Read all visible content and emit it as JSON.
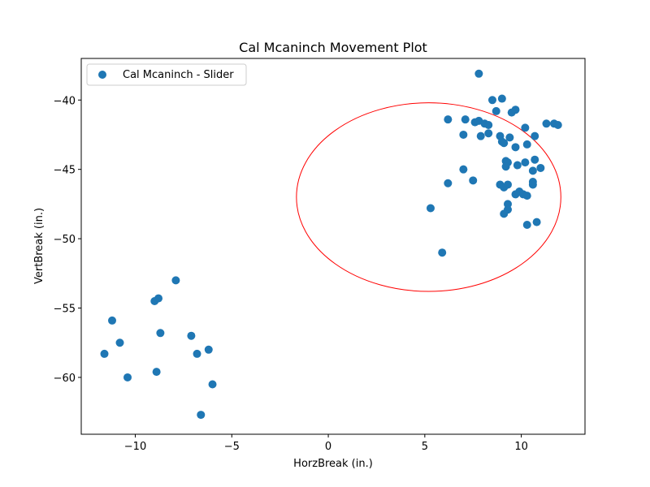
{
  "chart_data": {
    "type": "scatter",
    "title": "Cal Mcaninch Movement Plot",
    "xlabel": "HorzBreak (in.)",
    "ylabel": "VertBreak (in.)",
    "xlim": [
      -12.8,
      13.3
    ],
    "ylim": [
      -64.1,
      -37.0
    ],
    "xticks": [
      -10,
      -5,
      0,
      5,
      10
    ],
    "yticks": [
      -40,
      -45,
      -50,
      -55,
      -60
    ],
    "grid": false,
    "legend_position": "top-left",
    "colors": {
      "series": "#1f77b4",
      "ellipse": "#ff0000"
    },
    "series": [
      {
        "name": "Cal Mcaninch - Slider",
        "points": [
          [
            7.8,
            -38.1
          ],
          [
            8.5,
            -40.0
          ],
          [
            9.0,
            -39.9
          ],
          [
            9.7,
            -40.7
          ],
          [
            9.5,
            -40.9
          ],
          [
            8.7,
            -40.8
          ],
          [
            6.2,
            -41.4
          ],
          [
            7.1,
            -41.4
          ],
          [
            7.6,
            -41.6
          ],
          [
            7.8,
            -41.5
          ],
          [
            8.1,
            -41.7
          ],
          [
            8.3,
            -41.8
          ],
          [
            10.2,
            -42.0
          ],
          [
            11.3,
            -41.7
          ],
          [
            11.7,
            -41.7
          ],
          [
            11.9,
            -41.8
          ],
          [
            7.0,
            -42.5
          ],
          [
            7.9,
            -42.6
          ],
          [
            8.3,
            -42.4
          ],
          [
            8.9,
            -42.6
          ],
          [
            9.0,
            -43.0
          ],
          [
            9.1,
            -43.1
          ],
          [
            9.4,
            -42.7
          ],
          [
            10.7,
            -42.6
          ],
          [
            9.7,
            -43.4
          ],
          [
            10.3,
            -43.2
          ],
          [
            9.2,
            -44.4
          ],
          [
            9.3,
            -44.5
          ],
          [
            9.8,
            -44.7
          ],
          [
            10.2,
            -44.5
          ],
          [
            10.7,
            -44.3
          ],
          [
            9.2,
            -44.8
          ],
          [
            11.0,
            -44.9
          ],
          [
            10.6,
            -45.1
          ],
          [
            7.0,
            -45.0
          ],
          [
            7.5,
            -45.8
          ],
          [
            6.2,
            -46.0
          ],
          [
            10.6,
            -45.9
          ],
          [
            10.6,
            -46.1
          ],
          [
            8.9,
            -46.1
          ],
          [
            9.1,
            -46.3
          ],
          [
            9.3,
            -46.1
          ],
          [
            9.9,
            -46.6
          ],
          [
            9.7,
            -46.8
          ],
          [
            10.1,
            -46.8
          ],
          [
            10.3,
            -46.9
          ],
          [
            9.3,
            -47.5
          ],
          [
            9.3,
            -47.9
          ],
          [
            9.1,
            -48.2
          ],
          [
            5.3,
            -47.8
          ],
          [
            10.8,
            -48.8
          ],
          [
            10.3,
            -49.0
          ],
          [
            5.9,
            -51.0
          ],
          [
            -7.9,
            -53.0
          ],
          [
            -8.8,
            -54.3
          ],
          [
            -9.0,
            -54.5
          ],
          [
            -11.2,
            -55.9
          ],
          [
            -8.7,
            -56.8
          ],
          [
            -7.1,
            -57.0
          ],
          [
            -10.8,
            -57.5
          ],
          [
            -6.2,
            -58.0
          ],
          [
            -11.6,
            -58.3
          ],
          [
            -6.8,
            -58.3
          ],
          [
            -8.9,
            -59.6
          ],
          [
            -10.4,
            -60.0
          ],
          [
            -6.0,
            -60.5
          ],
          [
            -6.6,
            -62.7
          ]
        ]
      }
    ],
    "ellipse": {
      "cx": 5.2,
      "cy": -47.0,
      "rx": 6.85,
      "ry": 6.8
    }
  }
}
